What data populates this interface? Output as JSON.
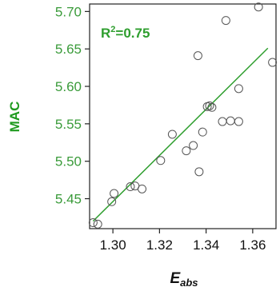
{
  "chart_data": {
    "type": "scatter",
    "title": "",
    "xlabel": "E",
    "xlabel_subscript": "abs",
    "ylabel": "MAC",
    "xlim": [
      1.29,
      1.37
    ],
    "ylim": [
      5.41,
      5.71
    ],
    "xticks": [
      1.3,
      1.32,
      1.34,
      1.36
    ],
    "xtick_labels": [
      "1.30",
      "1.32",
      "1.34",
      "1.36"
    ],
    "yticks": [
      5.45,
      5.5,
      5.55,
      5.6,
      5.65,
      5.7
    ],
    "ytick_labels": [
      "5.45",
      "5.50",
      "5.55",
      "5.60",
      "5.65",
      "5.70"
    ],
    "grid": false,
    "annotation": {
      "text_main": "R",
      "superscript": "2",
      "text_rest": "=0.75"
    },
    "points": [
      [
        1.2915,
        5.418
      ],
      [
        1.2935,
        5.416
      ],
      [
        1.2995,
        5.446
      ],
      [
        1.3005,
        5.457
      ],
      [
        1.3075,
        5.466
      ],
      [
        1.3095,
        5.467
      ],
      [
        1.3125,
        5.463
      ],
      [
        1.3205,
        5.501
      ],
      [
        1.3255,
        5.536
      ],
      [
        1.3315,
        5.514
      ],
      [
        1.3345,
        5.521
      ],
      [
        1.337,
        5.486
      ],
      [
        1.3385,
        5.539
      ],
      [
        1.3405,
        5.573
      ],
      [
        1.3415,
        5.574
      ],
      [
        1.3425,
        5.572
      ],
      [
        1.347,
        5.553
      ],
      [
        1.3505,
        5.554
      ],
      [
        1.354,
        5.553
      ],
      [
        1.354,
        5.597
      ],
      [
        1.3365,
        5.641
      ],
      [
        1.3485,
        5.688
      ],
      [
        1.3625,
        5.706
      ],
      [
        1.3685,
        5.632
      ]
    ],
    "fit_line": {
      "x": [
        1.2915,
        1.3665
      ],
      "y": [
        5.42,
        5.651
      ]
    },
    "colors": {
      "accent": "#2e9e2e",
      "ylabel": "#1f9a1f",
      "ytick": "#3a9b3a",
      "marker": "#555555",
      "axis": "#222222"
    }
  }
}
